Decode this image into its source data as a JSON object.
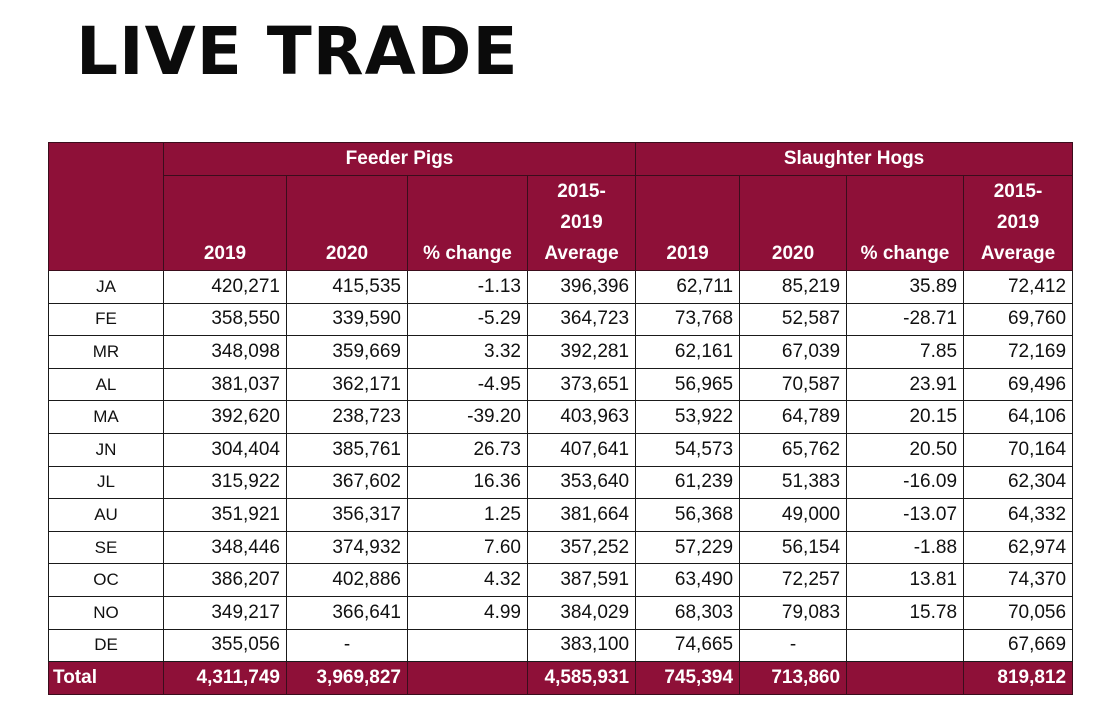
{
  "title": "LIVE TRADE",
  "groups": {
    "feeder": "Feeder Pigs",
    "slaughter": "Slaughter Hogs"
  },
  "columns": {
    "feeder": [
      "2019",
      "2020",
      "% change",
      "2015-\n2019\nAverage"
    ],
    "slaughter": [
      "2019",
      "2020",
      "% change",
      "2015-\n2019\nAverage"
    ]
  },
  "rows": [
    {
      "month": "JA",
      "f2019": "420,271",
      "f2020": "415,535",
      "fchg": "-1.13",
      "favg": "396,396",
      "s2019": "62,711",
      "s2020": "85,219",
      "schg": "35.89",
      "savg": "72,412"
    },
    {
      "month": "FE",
      "f2019": "358,550",
      "f2020": "339,590",
      "fchg": "-5.29",
      "favg": "364,723",
      "s2019": "73,768",
      "s2020": "52,587",
      "schg": "-28.71",
      "savg": "69,760"
    },
    {
      "month": "MR",
      "f2019": "348,098",
      "f2020": "359,669",
      "fchg": "3.32",
      "favg": "392,281",
      "s2019": "62,161",
      "s2020": "67,039",
      "schg": "7.85",
      "savg": "72,169"
    },
    {
      "month": "AL",
      "f2019": "381,037",
      "f2020": "362,171",
      "fchg": "-4.95",
      "favg": "373,651",
      "s2019": "56,965",
      "s2020": "70,587",
      "schg": "23.91",
      "savg": "69,496"
    },
    {
      "month": "MA",
      "f2019": "392,620",
      "f2020": "238,723",
      "fchg": "-39.20",
      "favg": "403,963",
      "s2019": "53,922",
      "s2020": "64,789",
      "schg": "20.15",
      "savg": "64,106"
    },
    {
      "month": "JN",
      "f2019": "304,404",
      "f2020": "385,761",
      "fchg": "26.73",
      "favg": "407,641",
      "s2019": "54,573",
      "s2020": "65,762",
      "schg": "20.50",
      "savg": "70,164"
    },
    {
      "month": "JL",
      "f2019": "315,922",
      "f2020": "367,602",
      "fchg": "16.36",
      "favg": "353,640",
      "s2019": "61,239",
      "s2020": "51,383",
      "schg": "-16.09",
      "savg": "62,304"
    },
    {
      "month": "AU",
      "f2019": "351,921",
      "f2020": "356,317",
      "fchg": "1.25",
      "favg": "381,664",
      "s2019": "56,368",
      "s2020": "49,000",
      "schg": "-13.07",
      "savg": "64,332"
    },
    {
      "month": "SE",
      "f2019": "348,446",
      "f2020": "374,932",
      "fchg": "7.60",
      "favg": "357,252",
      "s2019": "57,229",
      "s2020": "56,154",
      "schg": "-1.88",
      "savg": "62,974"
    },
    {
      "month": "OC",
      "f2019": "386,207",
      "f2020": "402,886",
      "fchg": "4.32",
      "favg": "387,591",
      "s2019": "63,490",
      "s2020": "72,257",
      "schg": "13.81",
      "savg": "74,370"
    },
    {
      "month": "NO",
      "f2019": "349,217",
      "f2020": "366,641",
      "fchg": "4.99",
      "favg": "384,029",
      "s2019": "68,303",
      "s2020": "79,083",
      "schg": "15.78",
      "savg": "70,056"
    },
    {
      "month": "DE",
      "f2019": "355,056",
      "f2020": "-",
      "fchg": "",
      "favg": "383,100",
      "s2019": "74,665",
      "s2020": "-",
      "schg": "",
      "savg": "67,669"
    }
  ],
  "total": {
    "label": "Total",
    "f2019": "4,311,749",
    "f2020": "3,969,827",
    "fchg": "",
    "favg": "4,585,931",
    "s2019": "745,394",
    "s2020": "713,860",
    "schg": "",
    "savg": "819,812"
  },
  "colors": {
    "header_bg": "#8e1038",
    "header_text": "#ffffff"
  }
}
